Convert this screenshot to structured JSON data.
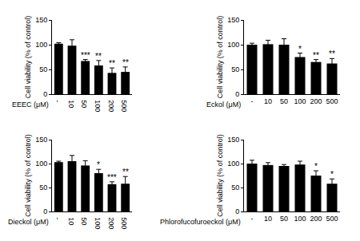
{
  "chart_data": [
    {
      "type": "bar",
      "x_label": "EEEC (μM)",
      "y_label": "Cell viability (% of control)",
      "categories": [
        "-",
        "10",
        "50",
        "100",
        "200",
        "500"
      ],
      "values": [
        102,
        98,
        67,
        58,
        43,
        45
      ],
      "errors": [
        2,
        12,
        3,
        10,
        10,
        10
      ],
      "significance": [
        null,
        null,
        "***",
        "**",
        "**",
        "**"
      ],
      "color": "#000000",
      "ylim": [
        0,
        150
      ],
      "yticks": [
        0,
        50,
        100,
        150
      ],
      "grid": false
    },
    {
      "type": "bar",
      "x_label": "Eckol (μM)",
      "y_label": "Cell viability (% of control)",
      "categories": [
        "-",
        "10",
        "50",
        "100",
        "200",
        "500"
      ],
      "values": [
        100,
        101,
        100,
        75,
        65,
        62
      ],
      "errors": [
        3,
        8,
        12,
        8,
        5,
        10
      ],
      "significance": [
        null,
        null,
        null,
        "*",
        "**",
        "**"
      ],
      "color": "#000000",
      "ylim": [
        0,
        150
      ],
      "yticks": [
        0,
        50,
        100,
        150
      ],
      "grid": false
    },
    {
      "type": "bar",
      "x_label": "Dieckol (μM)",
      "y_label": "Cell viability (% of control)",
      "categories": [
        "-",
        "10",
        "50",
        "100",
        "200",
        "500"
      ],
      "values": [
        103,
        105,
        96,
        80,
        57,
        58
      ],
      "errors": [
        2,
        12,
        10,
        8,
        5,
        15
      ],
      "significance": [
        null,
        null,
        null,
        "*",
        "***",
        "**"
      ],
      "color": "#000000",
      "ylim": [
        0,
        150
      ],
      "yticks": [
        0,
        50,
        100,
        150
      ],
      "grid": false
    },
    {
      "type": "bar",
      "x_label": "Phlorofucofuroeckol (μM)",
      "y_label": "Cell viability (% of control)",
      "categories": [
        "-",
        "10",
        "50",
        "100",
        "200",
        "500"
      ],
      "values": [
        100,
        97,
        95,
        98,
        75,
        58
      ],
      "errors": [
        7,
        5,
        3,
        7,
        10,
        10
      ],
      "significance": [
        null,
        null,
        null,
        null,
        "*",
        "*"
      ],
      "color": "#000000",
      "ylim": [
        0,
        150
      ],
      "yticks": [
        0,
        50,
        100,
        150
      ],
      "grid": false
    }
  ]
}
